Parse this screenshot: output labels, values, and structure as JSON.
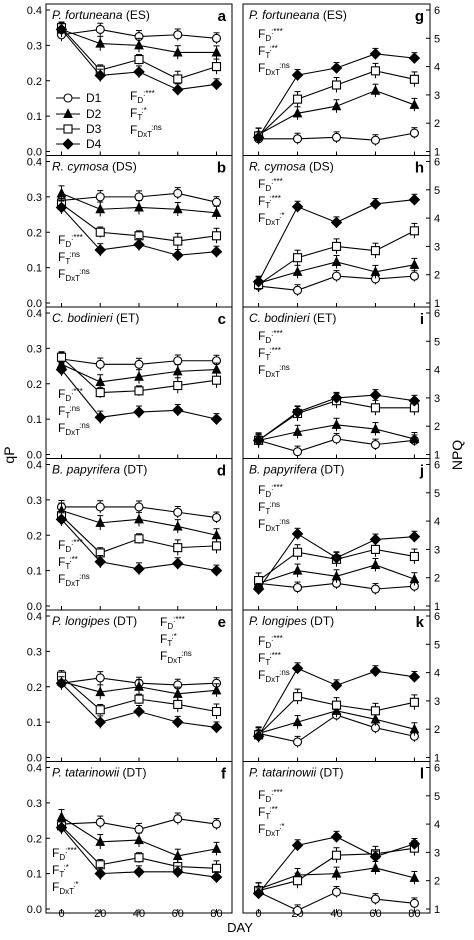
{
  "figure": {
    "ylabel_left": "qP",
    "ylabel_right": "NPQ",
    "xlabel": "DAY",
    "x_ticks": [
      "0",
      "20",
      "40",
      "60",
      "80"
    ],
    "legend": [
      "D1",
      "D2",
      "D3",
      "D4"
    ]
  },
  "chart_data": [
    {
      "type": "line",
      "panel": "left",
      "row": 0,
      "letter": "a",
      "species": "P. fortuneana",
      "group": "(ES)",
      "x": [
        0,
        20,
        40,
        60,
        80
      ],
      "ylim": [
        0,
        0.4
      ],
      "y_ticks": [
        "0.0",
        "0.1",
        "0.2",
        "0.3",
        "0.4"
      ],
      "series": [
        {
          "name": "D1",
          "values": [
            0.33,
            0.345,
            0.325,
            0.33,
            0.32
          ]
        },
        {
          "name": "D2",
          "values": [
            0.345,
            0.305,
            0.3,
            0.28,
            0.28
          ]
        },
        {
          "name": "D3",
          "values": [
            0.35,
            0.23,
            0.26,
            0.205,
            0.24
          ]
        },
        {
          "name": "D4",
          "values": [
            0.345,
            0.215,
            0.225,
            0.175,
            0.19
          ]
        }
      ],
      "stats": [
        {
          "f": "F",
          "sub": "D",
          "sig": ":***"
        },
        {
          "f": "F",
          "sub": "T",
          "sig": ":*"
        },
        {
          "f": "F",
          "sub": "DxT",
          "sig": ":ns"
        }
      ]
    },
    {
      "type": "line",
      "panel": "left",
      "row": 1,
      "letter": "b",
      "species": "R. cymosa",
      "group": "(DS)",
      "x": [
        0,
        20,
        40,
        60,
        80
      ],
      "ylim": [
        0,
        0.4
      ],
      "y_ticks": [
        "0.0",
        "0.1",
        "0.2",
        "0.3",
        "0.4"
      ],
      "series": [
        {
          "name": "D1",
          "values": [
            0.29,
            0.3,
            0.3,
            0.31,
            0.285
          ]
        },
        {
          "name": "D2",
          "values": [
            0.31,
            0.265,
            0.27,
            0.265,
            0.255
          ]
        },
        {
          "name": "D3",
          "values": [
            0.28,
            0.2,
            0.19,
            0.175,
            0.19
          ]
        },
        {
          "name": "D4",
          "values": [
            0.27,
            0.15,
            0.165,
            0.135,
            0.145
          ]
        }
      ],
      "stats": [
        {
          "f": "F",
          "sub": "D",
          "sig": ":***"
        },
        {
          "f": "F",
          "sub": "T",
          "sig": ":ns"
        },
        {
          "f": "F",
          "sub": "DxT",
          "sig": ":ns"
        }
      ]
    },
    {
      "type": "line",
      "panel": "left",
      "row": 2,
      "letter": "c",
      "species": "C. bodinieri",
      "group": "(ET)",
      "x": [
        0,
        20,
        40,
        60,
        80
      ],
      "ylim": [
        0,
        0.4
      ],
      "y_ticks": [
        "0.0",
        "0.1",
        "0.2",
        "0.3",
        "0.4"
      ],
      "series": [
        {
          "name": "D1",
          "values": [
            0.27,
            0.255,
            0.255,
            0.265,
            0.265
          ]
        },
        {
          "name": "D2",
          "values": [
            0.255,
            0.205,
            0.22,
            0.235,
            0.24
          ]
        },
        {
          "name": "D3",
          "values": [
            0.275,
            0.175,
            0.18,
            0.195,
            0.21
          ]
        },
        {
          "name": "D4",
          "values": [
            0.24,
            0.105,
            0.12,
            0.125,
            0.1
          ]
        }
      ],
      "stats": [
        {
          "f": "F",
          "sub": "D",
          "sig": ":***"
        },
        {
          "f": "F",
          "sub": "T",
          "sig": ":ns"
        },
        {
          "f": "F",
          "sub": "DxT",
          "sig": ":ns"
        }
      ]
    },
    {
      "type": "line",
      "panel": "left",
      "row": 3,
      "letter": "d",
      "species": "B. papyrifera",
      "group": "(DT)",
      "x": [
        0,
        20,
        40,
        60,
        80
      ],
      "ylim": [
        0,
        0.4
      ],
      "y_ticks": [
        "0.0",
        "0.1",
        "0.2",
        "0.3",
        "0.4"
      ],
      "series": [
        {
          "name": "D1",
          "values": [
            0.28,
            0.28,
            0.28,
            0.265,
            0.25
          ]
        },
        {
          "name": "D2",
          "values": [
            0.27,
            0.235,
            0.245,
            0.225,
            0.2
          ]
        },
        {
          "name": "D3",
          "values": [
            0.255,
            0.15,
            0.19,
            0.165,
            0.17
          ]
        },
        {
          "name": "D4",
          "values": [
            0.245,
            0.125,
            0.105,
            0.12,
            0.1
          ]
        }
      ],
      "stats": [
        {
          "f": "F",
          "sub": "D",
          "sig": ":***"
        },
        {
          "f": "F",
          "sub": "T",
          "sig": ":**"
        },
        {
          "f": "F",
          "sub": "DxT",
          "sig": ":ns"
        }
      ]
    },
    {
      "type": "line",
      "panel": "left",
      "row": 4,
      "letter": "e",
      "species": "P. longipes",
      "group": "(DT)",
      "x": [
        0,
        20,
        40,
        60,
        80
      ],
      "ylim": [
        0,
        0.4
      ],
      "y_ticks": [
        "0.0",
        "0.1",
        "0.2",
        "0.3",
        "0.4"
      ],
      "series": [
        {
          "name": "D1",
          "values": [
            0.21,
            0.225,
            0.21,
            0.205,
            0.21
          ]
        },
        {
          "name": "D2",
          "values": [
            0.215,
            0.185,
            0.2,
            0.18,
            0.19
          ]
        },
        {
          "name": "D3",
          "values": [
            0.23,
            0.135,
            0.165,
            0.15,
            0.13
          ]
        },
        {
          "name": "D4",
          "values": [
            0.21,
            0.1,
            0.13,
            0.1,
            0.085
          ]
        }
      ],
      "stats": [
        {
          "f": "F",
          "sub": "D",
          "sig": ":***"
        },
        {
          "f": "F",
          "sub": "T",
          "sig": ":*"
        },
        {
          "f": "F",
          "sub": "DxT",
          "sig": ":ns"
        }
      ]
    },
    {
      "type": "line",
      "panel": "left",
      "row": 5,
      "letter": "f",
      "species": "P. tatarinowii",
      "group": "(DT)",
      "x": [
        0,
        20,
        40,
        60,
        80
      ],
      "ylim": [
        0,
        0.4
      ],
      "y_ticks": [
        "0.0",
        "0.1",
        "0.2",
        "0.3",
        "0.4"
      ],
      "series": [
        {
          "name": "D1",
          "values": [
            0.24,
            0.245,
            0.225,
            0.255,
            0.24
          ]
        },
        {
          "name": "D2",
          "values": [
            0.26,
            0.19,
            0.195,
            0.15,
            0.17
          ]
        },
        {
          "name": "D3",
          "values": [
            0.235,
            0.125,
            0.145,
            0.12,
            0.115
          ]
        },
        {
          "name": "D4",
          "values": [
            0.23,
            0.1,
            0.105,
            0.105,
            0.09
          ]
        }
      ],
      "stats": [
        {
          "f": "F",
          "sub": "D",
          "sig": ":***"
        },
        {
          "f": "F",
          "sub": "T",
          "sig": ":*"
        },
        {
          "f": "F",
          "sub": "DxT",
          "sig": ":*"
        }
      ]
    },
    {
      "type": "line",
      "panel": "right",
      "row": 0,
      "letter": "g",
      "species": "P. fortuneana",
      "group": "(ES)",
      "x": [
        0,
        20,
        40,
        60,
        80
      ],
      "ylim": [
        1,
        6
      ],
      "y_ticks": [
        "1",
        "2",
        "3",
        "4",
        "5",
        "6"
      ],
      "series": [
        {
          "name": "D1",
          "values": [
            1.45,
            1.45,
            1.5,
            1.4,
            1.65
          ]
        },
        {
          "name": "D2",
          "values": [
            1.6,
            2.35,
            2.6,
            3.15,
            2.65
          ]
        },
        {
          "name": "D3",
          "values": [
            1.55,
            2.85,
            3.35,
            3.85,
            3.55
          ]
        },
        {
          "name": "D4",
          "values": [
            1.5,
            3.7,
            3.95,
            4.45,
            4.3
          ]
        }
      ],
      "stats": [
        {
          "f": "F",
          "sub": "D",
          "sig": ":***"
        },
        {
          "f": "F",
          "sub": "T",
          "sig": ":**"
        },
        {
          "f": "F",
          "sub": "DxT",
          "sig": ":ns"
        }
      ]
    },
    {
      "type": "line",
      "panel": "right",
      "row": 1,
      "letter": "h",
      "species": "R. cymosa",
      "group": "(DS)",
      "x": [
        0,
        20,
        40,
        60,
        80
      ],
      "ylim": [
        1,
        6
      ],
      "y_ticks": [
        "1",
        "2",
        "3",
        "4",
        "5",
        "6"
      ],
      "series": [
        {
          "name": "D1",
          "values": [
            1.6,
            1.45,
            1.95,
            1.85,
            1.95
          ]
        },
        {
          "name": "D2",
          "values": [
            1.7,
            2.1,
            2.45,
            2.1,
            2.35
          ]
        },
        {
          "name": "D3",
          "values": [
            1.65,
            2.6,
            3.0,
            2.85,
            3.55
          ]
        },
        {
          "name": "D4",
          "values": [
            1.75,
            4.4,
            3.85,
            4.5,
            4.65
          ]
        }
      ],
      "stats": [
        {
          "f": "F",
          "sub": "D",
          "sig": ":***"
        },
        {
          "f": "F",
          "sub": "T",
          "sig": ":***"
        },
        {
          "f": "F",
          "sub": "DxT",
          "sig": ":*"
        }
      ]
    },
    {
      "type": "line",
      "panel": "right",
      "row": 2,
      "letter": "i",
      "species": "C. bodinieri",
      "group": "(ET)",
      "x": [
        0,
        20,
        40,
        60,
        80
      ],
      "ylim": [
        1,
        6
      ],
      "y_ticks": [
        "1",
        "2",
        "3",
        "4",
        "5",
        "6"
      ],
      "series": [
        {
          "name": "D1",
          "values": [
            1.5,
            1.1,
            1.55,
            1.35,
            1.5
          ]
        },
        {
          "name": "D2",
          "values": [
            1.5,
            1.8,
            2.05,
            1.9,
            1.55
          ]
        },
        {
          "name": "D3",
          "values": [
            1.5,
            2.45,
            2.9,
            2.65,
            2.65
          ]
        },
        {
          "name": "D4",
          "values": [
            1.5,
            2.5,
            3.0,
            3.1,
            2.9
          ]
        }
      ],
      "stats": [
        {
          "f": "F",
          "sub": "D",
          "sig": ":***"
        },
        {
          "f": "F",
          "sub": "T",
          "sig": ":***"
        },
        {
          "f": "F",
          "sub": "DxT",
          "sig": ":ns"
        }
      ]
    },
    {
      "type": "line",
      "panel": "right",
      "row": 3,
      "letter": "j",
      "species": "B. papyrifera",
      "group": "(DT)",
      "x": [
        0,
        20,
        40,
        60,
        80
      ],
      "ylim": [
        1,
        6
      ],
      "y_ticks": [
        "1",
        "2",
        "3",
        "4",
        "5",
        "6"
      ],
      "series": [
        {
          "name": "D1",
          "values": [
            1.8,
            1.65,
            1.8,
            1.6,
            1.7
          ]
        },
        {
          "name": "D2",
          "values": [
            1.8,
            2.25,
            2.05,
            2.45,
            1.95
          ]
        },
        {
          "name": "D3",
          "values": [
            1.9,
            2.9,
            2.65,
            3.0,
            2.75
          ]
        },
        {
          "name": "D4",
          "values": [
            1.6,
            3.55,
            2.7,
            3.35,
            3.45
          ]
        }
      ],
      "stats": [
        {
          "f": "F",
          "sub": "D",
          "sig": ":***"
        },
        {
          "f": "F",
          "sub": "T",
          "sig": ":ns"
        },
        {
          "f": "F",
          "sub": "DxT",
          "sig": ":ns"
        }
      ]
    },
    {
      "type": "line",
      "panel": "right",
      "row": 4,
      "letter": "k",
      "species": "P. longipes",
      "group": "(DT)",
      "x": [
        0,
        20,
        40,
        60,
        80
      ],
      "ylim": [
        1,
        6
      ],
      "y_ticks": [
        "1",
        "2",
        "3",
        "4",
        "5",
        "6"
      ],
      "series": [
        {
          "name": "D1",
          "values": [
            1.85,
            1.55,
            2.5,
            2.05,
            1.75
          ]
        },
        {
          "name": "D2",
          "values": [
            1.85,
            2.25,
            2.65,
            2.35,
            2.0
          ]
        },
        {
          "name": "D3",
          "values": [
            1.8,
            3.15,
            2.85,
            2.65,
            2.95
          ]
        },
        {
          "name": "D4",
          "values": [
            1.75,
            4.15,
            3.55,
            4.05,
            3.85
          ]
        }
      ],
      "stats": [
        {
          "f": "F",
          "sub": "D",
          "sig": ":***"
        },
        {
          "f": "F",
          "sub": "T",
          "sig": ":***"
        },
        {
          "f": "F",
          "sub": "DxT",
          "sig": ":ns"
        }
      ]
    },
    {
      "type": "line",
      "panel": "right",
      "row": 5,
      "letter": "l",
      "species": "P. tatarinowii",
      "group": "(DT)",
      "x": [
        0,
        20,
        40,
        60,
        80
      ],
      "ylim": [
        1,
        6
      ],
      "y_ticks": [
        "1",
        "2",
        "3",
        "4",
        "5",
        "6"
      ],
      "series": [
        {
          "name": "D1",
          "values": [
            1.6,
            0.95,
            1.6,
            1.35,
            1.2
          ]
        },
        {
          "name": "D2",
          "values": [
            1.7,
            2.2,
            2.25,
            2.45,
            2.1
          ]
        },
        {
          "name": "D3",
          "values": [
            1.65,
            2.0,
            2.9,
            2.95,
            3.15
          ]
        },
        {
          "name": "D4",
          "values": [
            1.55,
            3.25,
            3.55,
            2.85,
            3.3
          ]
        }
      ],
      "stats": [
        {
          "f": "F",
          "sub": "D",
          "sig": ":***"
        },
        {
          "f": "F",
          "sub": "T",
          "sig": ":**"
        },
        {
          "f": "F",
          "sub": "DxT",
          "sig": ":*"
        }
      ]
    }
  ]
}
